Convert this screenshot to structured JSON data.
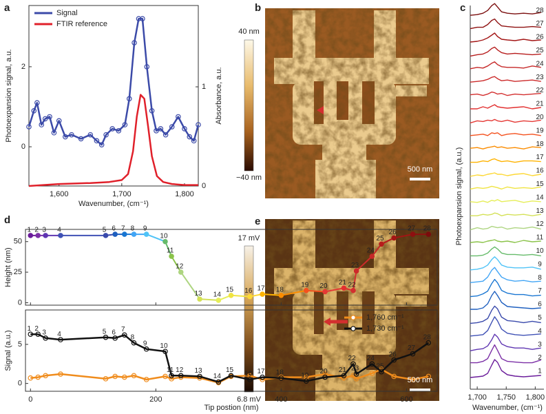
{
  "chart_data": [
    {
      "type": "line",
      "panel": "a",
      "xlabel": "Wavenumber, (cm⁻¹)",
      "ylabel": "Photoexpansion signal, a.u.",
      "y2label": "Absorbance, a.u.",
      "xlim": [
        1552,
        1822
      ],
      "xticks": [
        {
          "value": 1600,
          "label": "1,600"
        },
        {
          "value": 1700,
          "label": "1,700"
        },
        {
          "value": 1800,
          "label": "1,800"
        }
      ],
      "ylim": [
        -0.98,
        3.53
      ],
      "yticks": [
        0,
        2
      ],
      "y2lim": [
        0,
        1.82
      ],
      "y2ticks": [
        0,
        1
      ],
      "legend": "upper left",
      "series": [
        {
          "name": "Signal",
          "color": "#3b4aa8",
          "marker": "open-circle",
          "x": [
            1552,
            1560,
            1565,
            1572,
            1578,
            1585,
            1592,
            1600,
            1610,
            1620,
            1635,
            1650,
            1660,
            1668,
            1675,
            1685,
            1695,
            1705,
            1712,
            1720,
            1727,
            1733,
            1740,
            1748,
            1755,
            1762,
            1770,
            1780,
            1790,
            1800,
            1808,
            1815,
            1822
          ],
          "values": [
            0.5,
            0.9,
            1.1,
            0.55,
            0.7,
            0.75,
            0.35,
            0.65,
            0.25,
            0.3,
            0.2,
            0.3,
            0.15,
            0.05,
            0.3,
            0.45,
            0.4,
            0.55,
            1.2,
            2.6,
            3.2,
            3.2,
            2.0,
            0.9,
            0.4,
            0.45,
            0.3,
            0.5,
            0.75,
            0.45,
            0.25,
            0.15,
            0.55
          ]
        },
        {
          "name": "FTIR reference",
          "color": "#e0202a",
          "axis": "y2",
          "x": [
            1552,
            1600,
            1650,
            1680,
            1700,
            1710,
            1718,
            1724,
            1730,
            1736,
            1742,
            1748,
            1756,
            1766,
            1780,
            1800,
            1822
          ],
          "values": [
            0.0,
            0.02,
            0.03,
            0.04,
            0.06,
            0.12,
            0.35,
            0.7,
            0.92,
            0.88,
            0.6,
            0.3,
            0.1,
            0.04,
            0.02,
            0.01,
            0.01
          ]
        }
      ]
    },
    {
      "type": "image",
      "panel": "b",
      "colorbar_labels": [
        "40 nm",
        "−40 nm"
      ],
      "scale_bar": "500 nm"
    },
    {
      "type": "line",
      "panel": "c",
      "stacked": true,
      "xlabel": "Wavenumber, (cm⁻¹)",
      "ylabel": "Photoexpansion signal, (a.u.)",
      "xlim": [
        1688,
        1815
      ],
      "xticks": [
        {
          "value": 1700,
          "label": "1,700"
        },
        {
          "value": 1750,
          "label": "1,750"
        },
        {
          "value": 1800,
          "label": "1,800"
        }
      ],
      "x": [
        1688,
        1700,
        1710,
        1718,
        1725,
        1730,
        1735,
        1742,
        1752,
        1765,
        1780,
        1795,
        1810
      ],
      "series": [
        {
          "name": "1",
          "color": "#6a1b9a",
          "values": [
            0,
            0.05,
            0.1,
            0.3,
            0.9,
            1.3,
            1.1,
            0.5,
            0.2,
            0.1,
            0.05,
            0.1,
            0.15
          ]
        },
        {
          "name": "2",
          "color": "#7b2fa6",
          "values": [
            0.1,
            0.1,
            0.2,
            0.4,
            1.0,
            1.4,
            1.0,
            0.4,
            0.2,
            0.15,
            0.1,
            0.1,
            0.3
          ]
        },
        {
          "name": "3",
          "color": "#5e35b1",
          "values": [
            0,
            0.1,
            0.15,
            0.35,
            0.8,
            1.2,
            1.0,
            0.5,
            0.3,
            0.2,
            0.2,
            0.1,
            0.2
          ]
        },
        {
          "name": "4",
          "color": "#3f51b5",
          "values": [
            0.1,
            0.15,
            0.2,
            0.5,
            1.1,
            1.5,
            1.2,
            0.6,
            0.3,
            0.2,
            0.15,
            0.2,
            0.25
          ]
        },
        {
          "name": "5",
          "color": "#3949ab",
          "values": [
            0.05,
            0.1,
            0.2,
            0.4,
            1.0,
            1.3,
            1.1,
            0.5,
            0.25,
            0.2,
            0.1,
            0.2,
            0.1
          ]
        },
        {
          "name": "6",
          "color": "#1e5fbf",
          "values": [
            0.1,
            0.1,
            0.2,
            0.5,
            1.1,
            1.4,
            1.1,
            0.6,
            0.3,
            0.25,
            0.2,
            0.15,
            0.2
          ]
        },
        {
          "name": "7",
          "color": "#1976d2",
          "values": [
            0.05,
            0.1,
            0.25,
            0.45,
            1.0,
            1.3,
            1.05,
            0.5,
            0.3,
            0.2,
            0.2,
            0.1,
            0.15
          ]
        },
        {
          "name": "8",
          "color": "#42a5f5",
          "values": [
            0.1,
            0.15,
            0.2,
            0.5,
            1.0,
            1.2,
            0.9,
            0.5,
            0.3,
            0.2,
            0.25,
            0.15,
            0.2
          ]
        },
        {
          "name": "9",
          "color": "#4fc3f7",
          "values": [
            0.05,
            0.1,
            0.2,
            0.4,
            0.8,
            1.0,
            0.8,
            0.4,
            0.25,
            0.2,
            0.2,
            0.25,
            0.1
          ]
        },
        {
          "name": "10",
          "color": "#66bb6a",
          "values": [
            0.1,
            0.1,
            0.15,
            0.3,
            0.6,
            0.75,
            0.6,
            0.3,
            0.2,
            0.2,
            0.15,
            0.2,
            0.1
          ]
        },
        {
          "name": "11",
          "color": "#8bc34a",
          "values": [
            0.1,
            0.15,
            0.1,
            0.2,
            0.25,
            0.3,
            0.2,
            0.15,
            0.2,
            0.1,
            0.25,
            0.15,
            0.2
          ]
        },
        {
          "name": "12",
          "color": "#aed581",
          "values": [
            0.05,
            0.2,
            0.1,
            0.15,
            0.3,
            0.25,
            0.2,
            0.25,
            0.1,
            0.2,
            0.15,
            0.25,
            0.1
          ]
        },
        {
          "name": "13",
          "color": "#d4e157",
          "values": [
            0.1,
            0.1,
            0.2,
            0.15,
            0.2,
            0.3,
            0.25,
            0.1,
            0.2,
            0.15,
            0.2,
            0.1,
            0.2
          ]
        },
        {
          "name": "14",
          "color": "#e6ee58",
          "values": [
            0.15,
            0.1,
            0.2,
            0.1,
            0.25,
            0.2,
            0.3,
            0.15,
            0.2,
            0.25,
            0.1,
            0.2,
            0.15
          ]
        },
        {
          "name": "15",
          "color": "#f0e442",
          "values": [
            0.1,
            0.2,
            0.15,
            0.2,
            0.3,
            0.25,
            0.2,
            0.1,
            0.25,
            0.15,
            0.2,
            0.15,
            0.25
          ]
        },
        {
          "name": "16",
          "color": "#fdd835",
          "values": [
            0.05,
            0.15,
            0.1,
            0.2,
            0.25,
            0.3,
            0.2,
            0.2,
            0.1,
            0.2,
            0.25,
            0.1,
            0.2
          ]
        },
        {
          "name": "17",
          "color": "#ffb300",
          "values": [
            0.1,
            0.1,
            0.2,
            0.15,
            0.3,
            0.35,
            0.25,
            0.15,
            0.2,
            0.1,
            0.2,
            0.2,
            0.15
          ]
        },
        {
          "name": "18",
          "color": "#fb8c00",
          "values": [
            0.15,
            0.2,
            0.1,
            0.2,
            0.25,
            0.3,
            0.2,
            0.25,
            0.15,
            0.2,
            0.1,
            0.25,
            0.2
          ]
        },
        {
          "name": "19",
          "color": "#f4511e",
          "values": [
            0.1,
            0.15,
            0.2,
            0.1,
            0.3,
            0.25,
            0.3,
            0.1,
            0.2,
            0.25,
            0.15,
            0.2,
            0.1
          ]
        },
        {
          "name": "20",
          "color": "#e53935",
          "values": [
            0.05,
            0.2,
            0.15,
            0.25,
            0.2,
            0.3,
            0.2,
            0.15,
            0.25,
            0.1,
            0.2,
            0.15,
            0.25
          ]
        },
        {
          "name": "21",
          "color": "#e23030",
          "values": [
            0.1,
            0.1,
            0.25,
            0.15,
            0.3,
            0.4,
            0.25,
            0.2,
            0.15,
            0.2,
            0.25,
            0.1,
            0.2
          ]
        },
        {
          "name": "22",
          "color": "#d32f2f",
          "values": [
            0.15,
            0.2,
            0.1,
            0.2,
            0.35,
            0.3,
            0.2,
            0.25,
            0.1,
            0.2,
            0.15,
            0.2,
            0.25
          ]
        },
        {
          "name": "23",
          "color": "#cc2a2a",
          "values": [
            0.1,
            0.15,
            0.2,
            0.3,
            0.45,
            0.5,
            0.35,
            0.2,
            0.25,
            0.15,
            0.2,
            0.25,
            0.15
          ]
        },
        {
          "name": "24",
          "color": "#c62828",
          "values": [
            0.1,
            0.2,
            0.15,
            0.3,
            0.5,
            0.6,
            0.4,
            0.25,
            0.2,
            0.2,
            0.15,
            0.3,
            0.2
          ]
        },
        {
          "name": "25",
          "color": "#b71c1c",
          "values": [
            0.05,
            0.15,
            0.2,
            0.35,
            0.6,
            0.7,
            0.5,
            0.3,
            0.2,
            0.25,
            0.2,
            0.15,
            0.2
          ]
        },
        {
          "name": "26",
          "color": "#a31515",
          "values": [
            0.1,
            0.15,
            0.25,
            0.4,
            0.6,
            0.75,
            0.5,
            0.3,
            0.25,
            0.2,
            0.3,
            0.2,
            0.25
          ]
        },
        {
          "name": "27",
          "color": "#8e1010",
          "values": [
            0.1,
            0.2,
            0.2,
            0.4,
            0.7,
            0.8,
            0.55,
            0.3,
            0.25,
            0.2,
            0.2,
            0.25,
            0.2
          ]
        },
        {
          "name": "28",
          "color": "#7a0c0c",
          "values": [
            0.1,
            0.15,
            0.25,
            0.45,
            0.8,
            0.95,
            0.7,
            0.35,
            0.25,
            0.2,
            0.25,
            0.2,
            0.3
          ]
        }
      ]
    },
    {
      "type": "line",
      "panel": "d",
      "ylabel": "Height (nm)",
      "xlim": [
        -8,
        649
      ],
      "xticks": [
        0,
        200,
        400,
        600
      ],
      "ylim": [
        -2,
        60
      ],
      "yticks": [
        0,
        25,
        50
      ],
      "x": [
        0,
        12,
        24,
        48,
        120,
        135,
        150,
        165,
        185,
        215,
        225,
        240,
        270,
        300,
        320,
        350,
        370,
        400,
        440,
        470,
        500,
        515,
        520,
        545,
        560,
        580,
        610,
        635
      ],
      "point_labels": [
        "1",
        "2",
        "3",
        "4",
        "5",
        "6",
        "7",
        "8",
        "9",
        "10",
        "11",
        "12",
        "13",
        "14",
        "15",
        "16",
        "17",
        "18",
        "19",
        "20",
        "21",
        "22",
        "23",
        "24",
        "25",
        "26",
        "27",
        "28"
      ],
      "series": [
        {
          "marker": "filled-circle",
          "labeled": true,
          "colors": [
            "#6a1b9a",
            "#7b2fa6",
            "#5e35b1",
            "#3f51b5",
            "#3949ab",
            "#1e5fbf",
            "#1976d2",
            "#42a5f5",
            "#4fc3f7",
            "#66bb6a",
            "#8bc34a",
            "#aed581",
            "#d4e157",
            "#e6ee58",
            "#f0e442",
            "#fdd835",
            "#ffb300",
            "#fb8c00",
            "#f4511e",
            "#e53935",
            "#e23030",
            "#d32f2f",
            "#cc2a2a",
            "#c62828",
            "#b71c1c",
            "#a31515",
            "#8e1010",
            "#7a0c0c"
          ],
          "values": [
            55,
            55,
            55,
            55,
            55,
            56,
            56,
            56,
            56,
            50,
            38,
            25,
            3,
            2,
            6,
            5,
            7,
            6,
            10,
            9,
            12,
            10,
            26,
            38,
            48,
            53,
            56,
            56
          ]
        }
      ]
    },
    {
      "type": "line",
      "xlabel": "Tip postion (nm)",
      "ylabel": "Signal (a.u.)",
      "xlim": [
        -8,
        649
      ],
      "xticks": [
        0,
        200,
        400,
        600
      ],
      "ylim": [
        -1,
        9.4
      ],
      "yticks": [
        0,
        5
      ],
      "legend": "upper right",
      "x": [
        0,
        12,
        24,
        48,
        120,
        135,
        150,
        165,
        185,
        215,
        225,
        240,
        270,
        300,
        320,
        350,
        370,
        400,
        440,
        470,
        500,
        515,
        520,
        545,
        560,
        580,
        610,
        635
      ],
      "series": [
        {
          "name": "1,760 cm⁻¹",
          "color": "#f08c1c",
          "marker": "open-circle",
          "values": [
            0.7,
            0.8,
            1.0,
            1.2,
            0.6,
            0.9,
            0.8,
            1.0,
            0.5,
            0.9,
            0.6,
            0.8,
            0.7,
            0.1,
            0.9,
            1.0,
            0.5,
            0.8,
            0.8,
            1.2,
            0.7,
            1.0,
            0.6,
            1.3,
            1.8,
            0.9,
            0.5,
            0.9
          ]
        },
        {
          "name": "1,730 cm⁻¹",
          "color": "#111111",
          "marker": "open-circle",
          "labeled": true,
          "values": [
            6.3,
            6.3,
            5.8,
            5.6,
            5.9,
            5.8,
            6.2,
            5.2,
            4.4,
            4.1,
            1.0,
            1.0,
            0.9,
            0.2,
            1.0,
            0.5,
            0.8,
            0.7,
            0.3,
            0.8,
            1.0,
            2.5,
            1.2,
            2.5,
            1.5,
            3.0,
            3.8,
            5.2
          ]
        }
      ]
    },
    {
      "type": "image",
      "panel": "e",
      "colorbar_labels": [
        "17 mV",
        "6.8 mV"
      ],
      "scale_bar": "500 nm"
    }
  ]
}
